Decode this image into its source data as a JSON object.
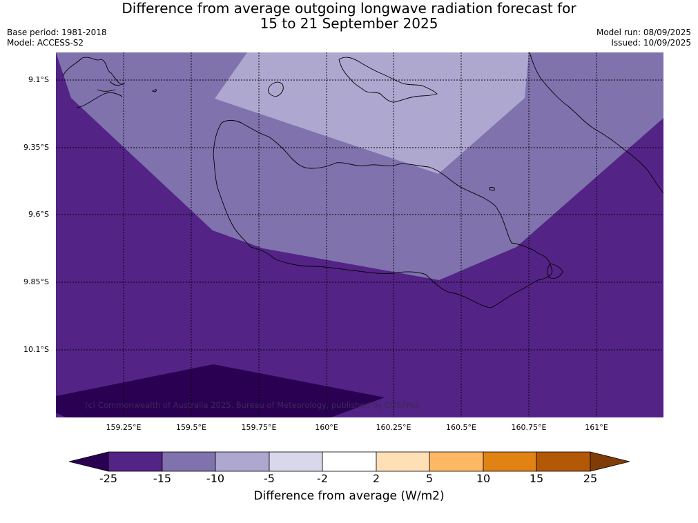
{
  "title": {
    "line1": "Difference from average outgoing longwave radiation forecast for",
    "line2": "15 to 21 September 2025"
  },
  "meta_left": {
    "base_period": "Base period: 1981-2018",
    "model": "Model: ACCESS-S2"
  },
  "meta_right": {
    "model_run": "Model run: 08/09/2025",
    "issued": "Issued: 10/09/2025"
  },
  "map": {
    "latitude_labels": [
      "9.1°S",
      "9.35°S",
      "9.6°S",
      "9.85°S",
      "10.1°S"
    ],
    "longitude_labels": [
      "159.25°E",
      "159.5°E",
      "159.75°E",
      "160°E",
      "160.25°E",
      "160.5°E",
      "160.75°E",
      "161°E"
    ],
    "copyright": "(c) Commonwealth of Australia 2025, Bureau of Meteorology, published by COSPPac"
  },
  "colorbar": {
    "tick_labels": [
      "-25",
      "-15",
      "-10",
      "-5",
      "-2",
      "2",
      "5",
      "10",
      "15",
      "25"
    ],
    "colors": [
      "#2a0052",
      "#532386",
      "#7f72ad",
      "#aea8d0",
      "#d8d7eb",
      "#ffffff",
      "#fedfb6",
      "#fdb863",
      "#e08214",
      "#b35806",
      "#7f3b08"
    ],
    "label": "Difference from average (W/m2)"
  }
}
